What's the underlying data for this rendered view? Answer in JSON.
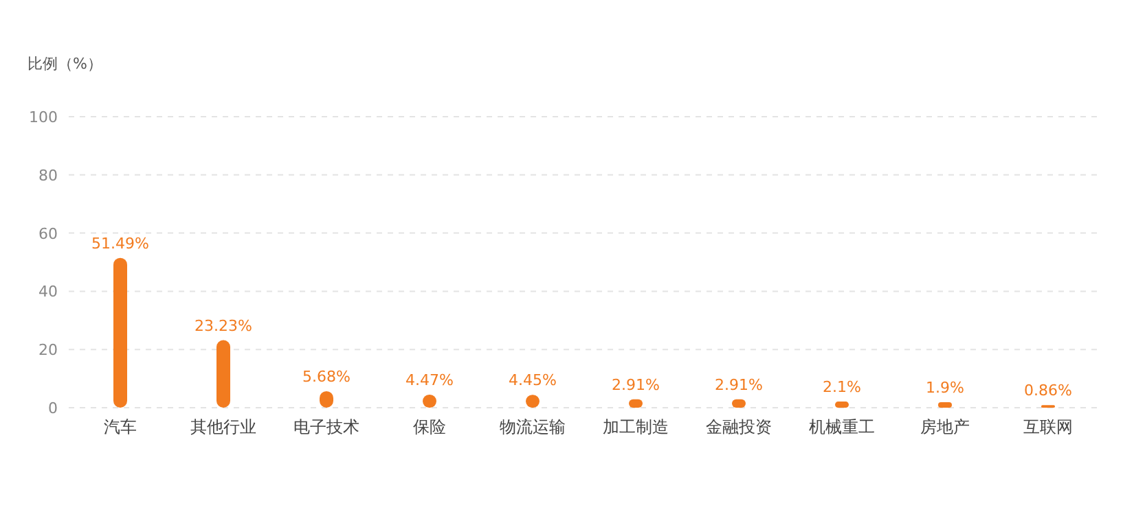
{
  "chart_data": {
    "type": "bar",
    "ylabel": "比例（%）",
    "categories": [
      "汽车",
      "其他行业",
      "电子技术",
      "保险",
      "物流运输",
      "加工制造",
      "金融投资",
      "机械重工",
      "房地产",
      "互联网"
    ],
    "values": [
      51.49,
      23.23,
      5.68,
      4.47,
      4.45,
      2.91,
      2.91,
      2.1,
      1.9,
      0.86
    ],
    "color": "#f27b1f",
    "ylim": [
      0,
      100
    ],
    "yticks": [
      0,
      20,
      40,
      60,
      80,
      100
    ],
    "grid": "y",
    "value_labels": [
      "51.49%",
      "23.23%",
      "5.68%",
      "4.47%",
      "4.45%",
      "2.91%",
      "2.91%",
      "2.1%",
      "1.9%",
      "0.86%"
    ]
  }
}
